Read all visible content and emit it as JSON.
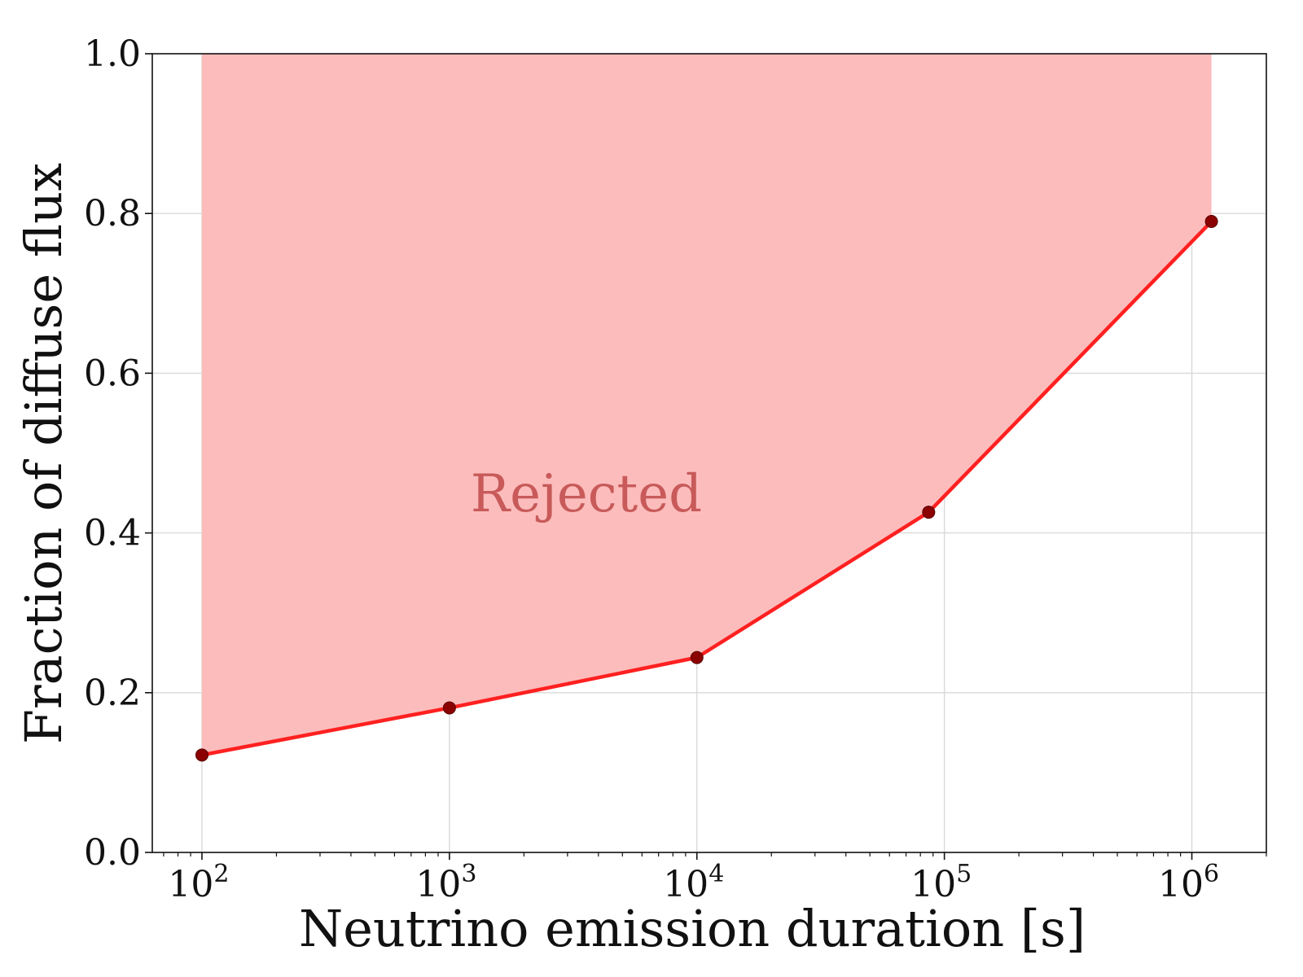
{
  "chart_data": {
    "type": "line",
    "title": "",
    "xlabel": "Neutrino emission duration [s]",
    "ylabel": "Fraction of diffuse flux",
    "x_scale": "log",
    "x_ticks": [
      {
        "base": "10",
        "exp": "2",
        "value": 100
      },
      {
        "base": "10",
        "exp": "3",
        "value": 1000
      },
      {
        "base": "10",
        "exp": "4",
        "value": 10000
      },
      {
        "base": "10",
        "exp": "5",
        "value": 100000
      },
      {
        "base": "10",
        "exp": "6",
        "value": 1000000
      }
    ],
    "y_ticks": [
      "0.0",
      "0.2",
      "0.4",
      "0.6",
      "0.8",
      "1.0"
    ],
    "xlim": [
      63,
      2000000
    ],
    "ylim": [
      0.0,
      1.0
    ],
    "grid": true,
    "series": [
      {
        "x": [
          100,
          1000,
          10000,
          86400,
          1200000
        ],
        "y": [
          0.122,
          0.181,
          0.244,
          0.426,
          0.79
        ],
        "marker": "circle"
      }
    ],
    "shaded_region": {
      "label": "Rejected",
      "between": "series to 1.0"
    },
    "annotation": "Rejected",
    "colors": {
      "line": "#ff2020",
      "marker": "#8b0000",
      "fill": "#fcbcbc",
      "annotation": "#c85a5a",
      "grid": "#d9d9d9"
    }
  }
}
